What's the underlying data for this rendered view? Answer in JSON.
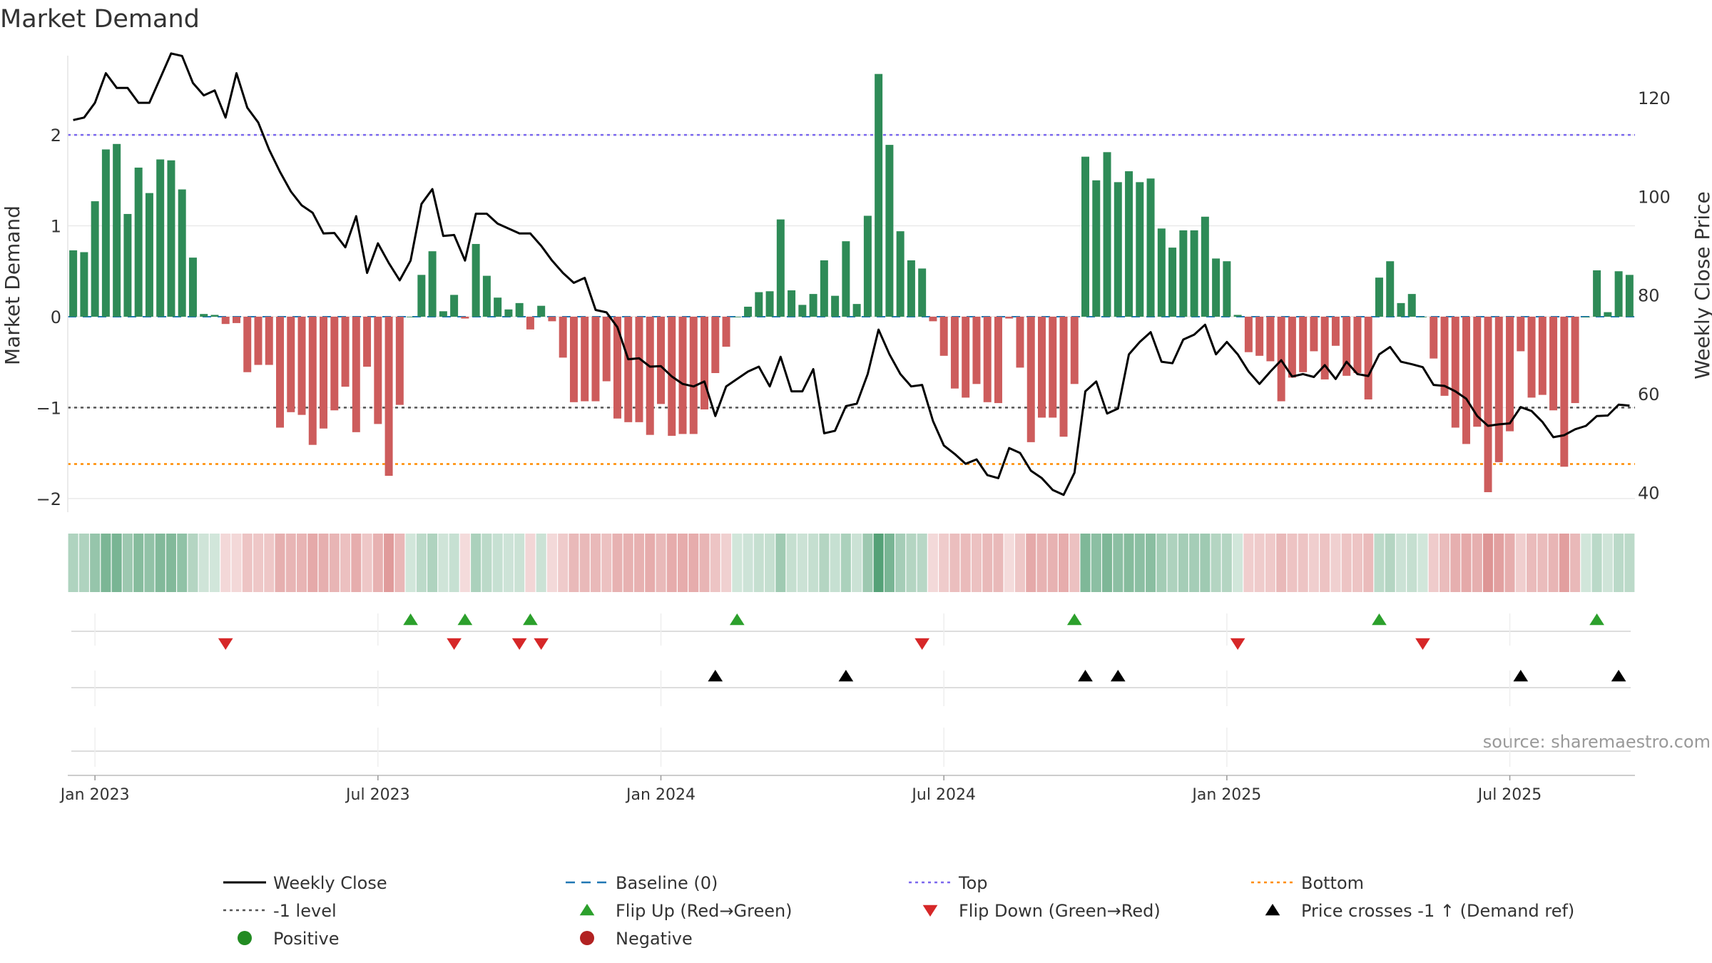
{
  "chart_data": {
    "type": "bar",
    "title": "Market Demand",
    "ylabel": "Market Demand",
    "y2label": "Weekly Close Price",
    "ylim": [
      -2.15,
      2.95
    ],
    "y2lim": [
      36,
      130
    ],
    "yticks": [
      -2,
      -1,
      0,
      1,
      2
    ],
    "yticklabels": [
      "−2",
      "−1",
      "0",
      "1",
      "2"
    ],
    "y2ticks": [
      40,
      60,
      80,
      100,
      120
    ],
    "y2ticklabels": [
      "40",
      "60",
      "80",
      "100",
      "120"
    ],
    "xticklabels": [
      "Jan 2023",
      "Jul 2023",
      "Jan 2024",
      "Jul 2024",
      "Jan 2025",
      "Jul 2025"
    ],
    "xtick_weeks": [
      2,
      28,
      54,
      80,
      106,
      132
    ],
    "levels": {
      "top": 2.0,
      "minus_one": -1.0,
      "bottom": -1.62,
      "baseline": 0
    },
    "colors": {
      "positive": "#2e8b57",
      "negative": "#cd5c5c",
      "close": "#000000",
      "top": "#7b68ee",
      "bottom": "#ff8c00",
      "minus_one": "#555555",
      "baseline": "#1f77b4",
      "flip_up": "#2ca02c",
      "flip_down": "#d62728",
      "cross": "#000000"
    },
    "series": [
      {
        "name": "Market Demand",
        "values": [
          0.73,
          0.71,
          1.27,
          1.84,
          1.9,
          1.13,
          1.64,
          1.36,
          1.73,
          1.72,
          1.4,
          0.65,
          0.03,
          0.02,
          -0.08,
          -0.07,
          -0.61,
          -0.53,
          -0.53,
          -1.22,
          -1.05,
          -1.08,
          -1.41,
          -1.23,
          -1.03,
          -0.77,
          -1.27,
          -0.55,
          -1.18,
          -1.75,
          -0.97,
          0,
          0.46,
          0.72,
          0.06,
          0.24,
          -0.02,
          0.8,
          0.45,
          0.21,
          0.08,
          0.15,
          -0.14,
          0.12,
          -0.05,
          -0.45,
          -0.94,
          -0.93,
          -0.93,
          -0.71,
          -1.12,
          -1.16,
          -1.16,
          -1.3,
          -0.96,
          -1.31,
          -1.29,
          -1.29,
          -1.02,
          -0.62,
          -0.33,
          0,
          0.11,
          0.27,
          0.28,
          1.07,
          0.29,
          0.13,
          0.25,
          0.62,
          0.23,
          0.83,
          0.14,
          1.11,
          2.67,
          1.89,
          0.94,
          0.62,
          0.53,
          -0.05,
          -0.43,
          -0.79,
          -0.89,
          -0.74,
          -0.94,
          -0.95,
          -0.02,
          -0.56,
          -1.38,
          -1.11,
          -1.11,
          -1.32,
          -0.74,
          1.76,
          1.5,
          1.81,
          1.48,
          1.6,
          1.48,
          1.52,
          0.97,
          0.76,
          0.95,
          0.95,
          1.1,
          0.64,
          0.61,
          0.02,
          -0.39,
          -0.43,
          -0.49,
          -0.93,
          -0.67,
          -0.61,
          -0.38,
          -0.69,
          -0.32,
          -0.65,
          -0.62,
          -0.91,
          0.43,
          0.61,
          0.15,
          0.25,
          0,
          -0.46,
          -0.87,
          -1.22,
          -1.4,
          -1.21,
          -1.93,
          -1.6,
          -1.26,
          -0.38,
          -0.89,
          -0.86,
          -1.03,
          -1.65,
          -0.95,
          0,
          0.51,
          0.05,
          0.5,
          0.46
        ]
      },
      {
        "name": "Weekly Close",
        "values": [
          115.5,
          116,
          119,
          125,
          122,
          122,
          119,
          119,
          124,
          129,
          128.5,
          123,
          120.5,
          121.5,
          116,
          125,
          118,
          115,
          109.5,
          105,
          101,
          98.2,
          96.7,
          92.5,
          92.6,
          89.7,
          96,
          84.5,
          90.5,
          86.5,
          83,
          87,
          98.5,
          101.5,
          92,
          92.2,
          87,
          96.5,
          96.5,
          94.5,
          93.5,
          92.5,
          92.5,
          90,
          87,
          84.5,
          82.5,
          83.5,
          77,
          76.5,
          73.5,
          67,
          67.2,
          65.5,
          65.6,
          63.5,
          62,
          61.5,
          62.5,
          55.5,
          61.5,
          63,
          64.5,
          65.5,
          61.5,
          67.5,
          60.5,
          60.5,
          65,
          52,
          52.5,
          57.5,
          58,
          64,
          73,
          68,
          64,
          61.5,
          61.8,
          54.5,
          49.5,
          47.8,
          45.8,
          46.7,
          43.5,
          42.9,
          49,
          48,
          44.4,
          42.9,
          40.5,
          39.5,
          44,
          60.5,
          62.5,
          56,
          57,
          68,
          70.5,
          72.5,
          66.5,
          66.2,
          71,
          72,
          74,
          68,
          70.5,
          68,
          64.5,
          62,
          64.5,
          66.8,
          63.5,
          64,
          63.4,
          65.8,
          63,
          66.5,
          64,
          63.6,
          68,
          69.5,
          66.5,
          66,
          65.4,
          61.8,
          61.6,
          60.5,
          59,
          55.5,
          53.5,
          53.8,
          54,
          57.3,
          56.5,
          54.3,
          51.2,
          51.6,
          52.8,
          53.5,
          55.5,
          55.6,
          57.8,
          57.6
        ]
      }
    ],
    "flip_up_weeks": [
      31,
      36,
      42,
      61,
      92,
      120,
      140
    ],
    "flip_down_weeks": [
      14,
      35,
      41,
      43,
      78,
      107,
      124
    ],
    "price_cross_weeks": [
      59,
      71,
      93,
      96,
      133,
      142
    ],
    "legend_position": "bottom",
    "legend": [
      {
        "label": "Weekly Close",
        "kind": "line-solid",
        "color": "#000000"
      },
      {
        "label": "Baseline (0)",
        "kind": "line-dash",
        "color": "#1f77b4"
      },
      {
        "label": "Top",
        "kind": "line-dot",
        "color": "#7b68ee"
      },
      {
        "label": "Bottom",
        "kind": "line-dot",
        "color": "#ff8c00"
      },
      {
        "label": "-1 level",
        "kind": "line-dot",
        "color": "#555555"
      },
      {
        "label": "Flip Up (Red→Green)",
        "kind": "tri-up",
        "color": "#2ca02c"
      },
      {
        "label": "Flip Down (Green→Red)",
        "kind": "tri-down",
        "color": "#d62728"
      },
      {
        "label": "Price crosses -1 ↑ (Demand ref)",
        "kind": "tri-up",
        "color": "#000000"
      },
      {
        "label": "Positive",
        "kind": "dot",
        "color": "#228b22"
      },
      {
        "label": "Negative",
        "kind": "dot",
        "color": "#b22222"
      }
    ],
    "source": "source: sharemaestro.com"
  }
}
